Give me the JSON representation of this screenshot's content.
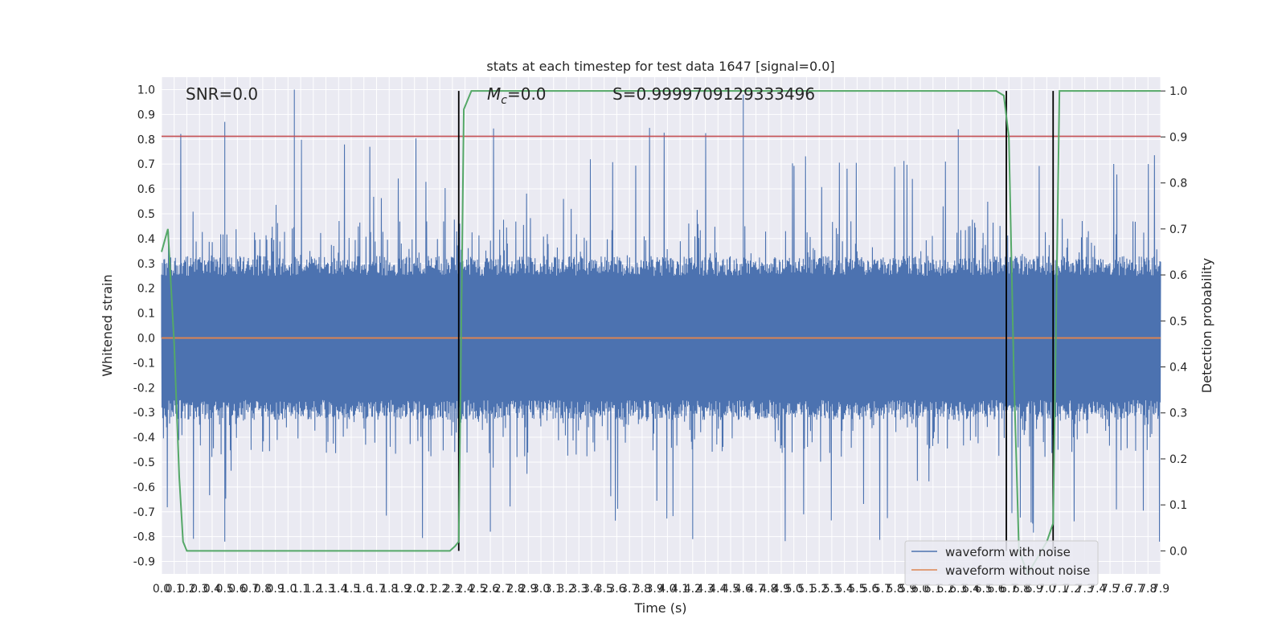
{
  "chart_data": {
    "type": "line",
    "title": "stats at each timestep for test data 1647 [signal=0.0]",
    "xlabel": "Time (s)",
    "ylabel": "Whitened strain",
    "ylabel_right": "Detection probability",
    "xlim": [
      0.0,
      7.9
    ],
    "ylim": [
      -0.95,
      1.05
    ],
    "ylim_right": [
      -0.05,
      1.03
    ],
    "x_ticks": [
      0.0,
      0.1,
      0.2,
      0.3,
      0.4,
      0.5,
      0.6,
      0.7,
      0.8,
      0.9,
      1.0,
      1.1,
      1.2,
      1.3,
      1.4,
      1.5,
      1.6,
      1.7,
      1.8,
      1.9,
      2.0,
      2.1,
      2.2,
      2.3,
      2.4,
      2.5,
      2.6,
      2.7,
      2.8,
      2.9,
      3.0,
      3.1,
      3.2,
      3.3,
      3.4,
      3.5,
      3.6,
      3.7,
      3.8,
      3.9,
      4.0,
      4.1,
      4.2,
      4.3,
      4.4,
      4.5,
      4.6,
      4.7,
      4.8,
      4.9,
      5.0,
      5.1,
      5.2,
      5.3,
      5.4,
      5.5,
      5.6,
      5.7,
      5.8,
      5.9,
      6.0,
      6.1,
      6.2,
      6.3,
      6.4,
      6.5,
      6.6,
      6.7,
      6.8,
      6.9,
      7.0,
      7.1,
      7.2,
      7.3,
      7.4,
      7.5,
      7.6,
      7.7,
      7.8,
      7.9
    ],
    "y_ticks": [
      -0.9,
      -0.8,
      -0.7,
      -0.6,
      -0.5,
      -0.4,
      -0.3,
      -0.2,
      -0.1,
      0.0,
      0.1,
      0.2,
      0.3,
      0.4,
      0.5,
      0.6,
      0.7,
      0.8,
      0.9,
      1.0
    ],
    "y_ticks_right": [
      0.0,
      0.1,
      0.2,
      0.3,
      0.4,
      0.5,
      0.6,
      0.7,
      0.8,
      0.9,
      1.0
    ],
    "grid": true,
    "legend_placement": "lower-right",
    "annotations": {
      "snr": "SNR=0.0",
      "mc_symbol": "M",
      "mc_sub": "c",
      "mc_value": "=0.0",
      "s": "S=0.9999709129333496"
    },
    "threshold": 0.812,
    "vertical_lines_x": [
      2.35,
      6.68,
      7.05
    ],
    "noise_envelope": {
      "typical": 0.25,
      "peak_max": 1.0,
      "trough_min": -0.82
    },
    "series": [
      {
        "name": "waveform with noise",
        "color": "#4c72b0",
        "values_note": ""
      },
      {
        "name": "waveform without noise",
        "color": "#dd8452",
        "x": [
          0.0,
          7.9
        ],
        "y": [
          0.0,
          0.0
        ]
      },
      {
        "name": "",
        "color": "#55a868",
        "axis": "right",
        "x": [
          0.0,
          0.05,
          0.1,
          0.14,
          0.17,
          0.2,
          2.28,
          2.32,
          2.35,
          2.39,
          2.45,
          6.6,
          6.66,
          6.7,
          6.74,
          6.78,
          6.85,
          7.0,
          7.05,
          7.1,
          7.2,
          7.9
        ],
        "y": [
          0.65,
          0.7,
          0.45,
          0.16,
          0.02,
          0.0,
          0.0,
          0.01,
          0.02,
          0.96,
          1.0,
          1.0,
          0.99,
          0.9,
          0.38,
          0.0,
          -0.05,
          0.02,
          0.06,
          1.0,
          1.0,
          1.0
        ]
      }
    ],
    "colors": {
      "threshold": "#c44e52",
      "vlines": "#000000",
      "panel": "#eaeaf2",
      "grid": "#ffffff"
    }
  }
}
